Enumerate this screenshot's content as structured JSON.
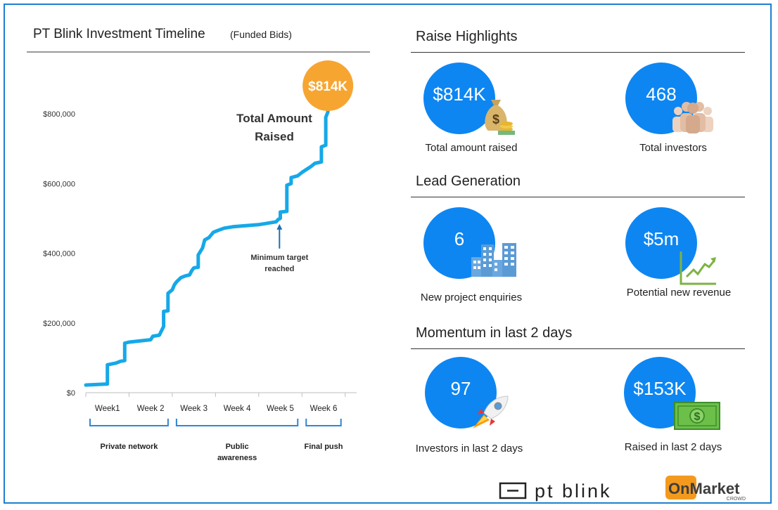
{
  "chart_data": {
    "type": "line",
    "title": "PT Blink Investment Timeline",
    "subtitle": "(Funded Bids)",
    "xlabel": "",
    "ylabel": "",
    "ylim": [
      0,
      800000
    ],
    "yticks": [
      {
        "value": 0,
        "label": "$0"
      },
      {
        "value": 200000,
        "label": "$200,000"
      },
      {
        "value": 400000,
        "label": "$400,000"
      },
      {
        "value": 600000,
        "label": "$600,000"
      },
      {
        "value": 800000,
        "label": "$800,000"
      }
    ],
    "categories": [
      "Week1",
      "Week 2",
      "Week 3",
      "Week 4",
      "Week 5",
      "Week 6"
    ],
    "xlim": [
      0,
      6.2
    ],
    "series": [
      {
        "name": "Total Amount Raised",
        "color": "#16a8e8",
        "points": [
          [
            0.0,
            22000
          ],
          [
            0.5,
            25000
          ],
          [
            0.5,
            80000
          ],
          [
            0.7,
            85000
          ],
          [
            0.8,
            90000
          ],
          [
            0.9,
            92000
          ],
          [
            0.9,
            142000
          ],
          [
            1.0,
            145000
          ],
          [
            1.5,
            152000
          ],
          [
            1.55,
            162000
          ],
          [
            1.7,
            165000
          ],
          [
            1.8,
            190000
          ],
          [
            1.8,
            233000
          ],
          [
            1.9,
            235000
          ],
          [
            1.9,
            285000
          ],
          [
            2.0,
            295000
          ],
          [
            2.05,
            310000
          ],
          [
            2.1,
            318000
          ],
          [
            2.2,
            330000
          ],
          [
            2.3,
            335000
          ],
          [
            2.4,
            338000
          ],
          [
            2.45,
            350000
          ],
          [
            2.5,
            358000
          ],
          [
            2.6,
            360000
          ],
          [
            2.6,
            395000
          ],
          [
            2.7,
            415000
          ],
          [
            2.75,
            438000
          ],
          [
            2.85,
            445000
          ],
          [
            2.95,
            460000
          ],
          [
            3.05,
            465000
          ],
          [
            3.2,
            472000
          ],
          [
            3.4,
            476000
          ],
          [
            3.6,
            478000
          ],
          [
            3.8,
            480000
          ],
          [
            4.0,
            482000
          ],
          [
            4.2,
            486000
          ],
          [
            4.4,
            490000
          ],
          [
            4.45,
            497000
          ],
          [
            4.5,
            500000
          ],
          [
            4.5,
            518000
          ],
          [
            4.65,
            520000
          ],
          [
            4.65,
            595000
          ],
          [
            4.75,
            600000
          ],
          [
            4.75,
            617000
          ],
          [
            4.9,
            622000
          ],
          [
            5.0,
            632000
          ],
          [
            5.2,
            648000
          ],
          [
            5.3,
            658000
          ],
          [
            5.45,
            662000
          ],
          [
            5.45,
            705000
          ],
          [
            5.55,
            710000
          ],
          [
            5.55,
            790000
          ],
          [
            5.6,
            805000
          ],
          [
            5.6,
            814000
          ]
        ]
      }
    ],
    "end_badge": {
      "label": "$814K",
      "color": "#f7a531"
    },
    "annotations": [
      {
        "text": "Total Amount Raised",
        "lines": [
          "Total Amount",
          "Raised"
        ]
      },
      {
        "text": "Minimum target reached",
        "lines": [
          "Minimum target",
          "reached"
        ],
        "x": 4.48,
        "y": 490000
      }
    ],
    "phases": [
      {
        "label_lines": [
          "Private network"
        ],
        "start": 0,
        "end": 2
      },
      {
        "label_lines": [
          "Public",
          "awareness"
        ],
        "start": 2,
        "end": 5
      },
      {
        "label_lines": [
          "Final push"
        ],
        "start": 5,
        "end": 6
      }
    ]
  },
  "sections": {
    "raise_highlights": "Raise Highlights",
    "lead_generation": "Lead Generation",
    "momentum": "Momentum in last 2 days"
  },
  "kpis": {
    "total_raised": {
      "value": "$814K",
      "label": "Total amount raised",
      "icon": "money-bag-icon"
    },
    "total_investors": {
      "value": "468",
      "label": "Total investors",
      "icon": "people-group-icon"
    },
    "enquiries": {
      "value": "6",
      "label": "New project enquiries",
      "icon": "buildings-icon"
    },
    "revenue": {
      "value": "$5m",
      "label": "Potential new revenue",
      "icon": "growth-chart-icon"
    },
    "investors_2d": {
      "value": "97",
      "label": "Investors in last 2 days",
      "icon": "rocket-icon"
    },
    "raised_2d": {
      "value": "$153K",
      "label": "Raised in last 2 days",
      "icon": "dollar-bill-icon"
    }
  },
  "logos": {
    "ptblink": "pt blink",
    "onmarket_main": "OnMarket",
    "onmarket_sub": "CROWD"
  },
  "colors": {
    "accent": "#0d86f2",
    "line": "#16a8e8",
    "badge": "#f7a531",
    "frame": "#1f7fd1",
    "phase_bracket": "#2e86d6"
  }
}
